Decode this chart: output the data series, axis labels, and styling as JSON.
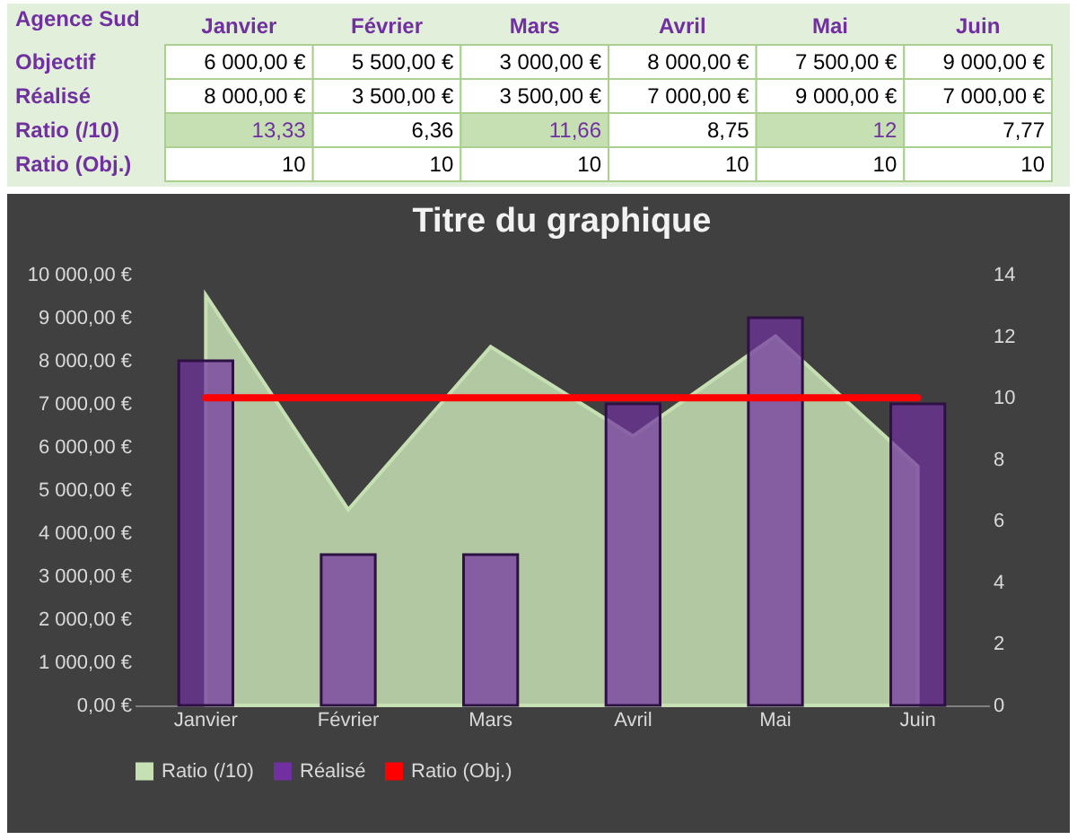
{
  "chart_data": [
    {
      "type": "heatmap",
      "ylabel": "Agence Sud",
      "categories": [
        "Janvier",
        "Février",
        "Mars",
        "Avril",
        "Mai",
        "Juin"
      ],
      "y_categories": [
        "Objectif",
        "Réalisé",
        "Ratio (/10)",
        "Ratio (Obj.)"
      ],
      "cells": [
        [
          6000,
          5500,
          3000,
          8000,
          7500,
          9000
        ],
        [
          8000,
          3500,
          3500,
          7000,
          9000,
          7000
        ],
        [
          13.33,
          6.36,
          11.66,
          8.75,
          12,
          7.77
        ],
        [
          10,
          10,
          10,
          10,
          10,
          10
        ]
      ],
      "cell_labels": [
        [
          "6 000,00 €",
          "5 500,00 €",
          "3 000,00 €",
          "8 000,00 €",
          "7 500,00 €",
          "9 000,00 €"
        ],
        [
          "8 000,00 €",
          "3 500,00 €",
          "3 500,00 €",
          "7 000,00 €",
          "9 000,00 €",
          "7 000,00 €"
        ],
        [
          "13,33",
          "6,36",
          "11,66",
          "8,75",
          "12",
          "7,77"
        ],
        [
          "10",
          "10",
          "10",
          "10",
          "10",
          "10"
        ]
      ]
    },
    {
      "type": "bar",
      "title": "Titre du graphique",
      "categories": [
        "Janvier",
        "Février",
        "Mars",
        "Avril",
        "Mai",
        "Juin"
      ],
      "series": [
        {
          "name": "Ratio (/10)",
          "type": "area",
          "axis": "y2",
          "color": "#c6e0b4",
          "values": [
            13.33,
            6.36,
            11.66,
            8.75,
            12,
            7.77
          ]
        },
        {
          "name": "Réalisé",
          "type": "bar",
          "color": "#7030a0",
          "values": [
            8000,
            3500,
            3500,
            7000,
            9000,
            7000
          ]
        },
        {
          "name": "Ratio (Obj.)",
          "type": "line",
          "axis": "y2",
          "color": "#ff0000",
          "values": [
            10,
            10,
            10,
            10,
            10,
            10
          ]
        }
      ],
      "ylim": [
        0,
        10000
      ],
      "yticks": [
        {
          "value": 0,
          "label": "0,00 €"
        },
        {
          "value": 1000,
          "label": "1 000,00 €"
        },
        {
          "value": 2000,
          "label": "2 000,00 €"
        },
        {
          "value": 3000,
          "label": "3 000,00 €"
        },
        {
          "value": 4000,
          "label": "4 000,00 €"
        },
        {
          "value": 5000,
          "label": "5 000,00 €"
        },
        {
          "value": 6000,
          "label": "6 000,00 €"
        },
        {
          "value": 7000,
          "label": "7 000,00 €"
        },
        {
          "value": 8000,
          "label": "8 000,00 €"
        },
        {
          "value": 9000,
          "label": "9 000,00 €"
        },
        {
          "value": 10000,
          "label": "10 000,00 €"
        }
      ],
      "y2lim": [
        0,
        14
      ],
      "y2ticks": [
        0,
        2,
        4,
        6,
        8,
        10,
        12,
        14
      ],
      "legend": "bottom"
    }
  ]
}
